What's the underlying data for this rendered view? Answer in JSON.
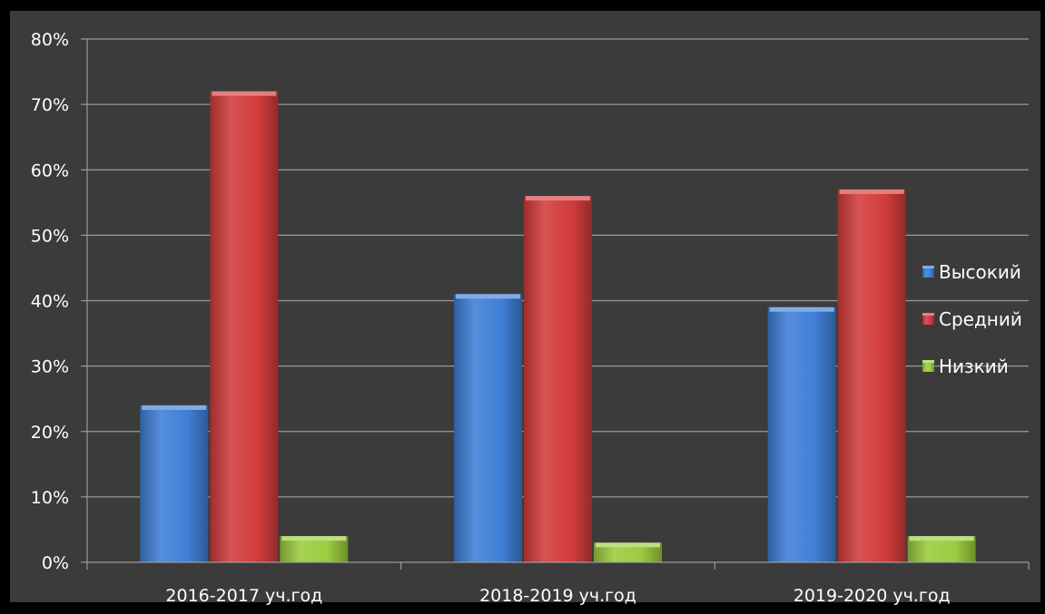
{
  "chart_data": {
    "type": "bar",
    "title": "",
    "xlabel": "",
    "ylabel": "",
    "categories": [
      "2016-2017 уч.год",
      "2018-2019 уч.год",
      "2019-2020 уч.год"
    ],
    "series": [
      {
        "name": "Высокий",
        "values": [
          24,
          41,
          39
        ],
        "color": "#3f7fd6"
      },
      {
        "name": "Средний",
        "values": [
          72,
          56,
          57
        ],
        "color": "#d23c3c"
      },
      {
        "name": "Низкий",
        "values": [
          4,
          3,
          4
        ],
        "color": "#9bcc3e"
      }
    ],
    "ylim": [
      0,
      80
    ],
    "y_ticks": [
      "0%",
      "10%",
      "20%",
      "30%",
      "40%",
      "50%",
      "60%",
      "70%",
      "80%"
    ],
    "value_unit": "%",
    "grid": true,
    "legend_position": "right",
    "colors": {
      "page_background": "#000000",
      "plot_background": "#3b3b3b",
      "gridline": "#9a9a9a",
      "text": "#ffffff"
    }
  }
}
